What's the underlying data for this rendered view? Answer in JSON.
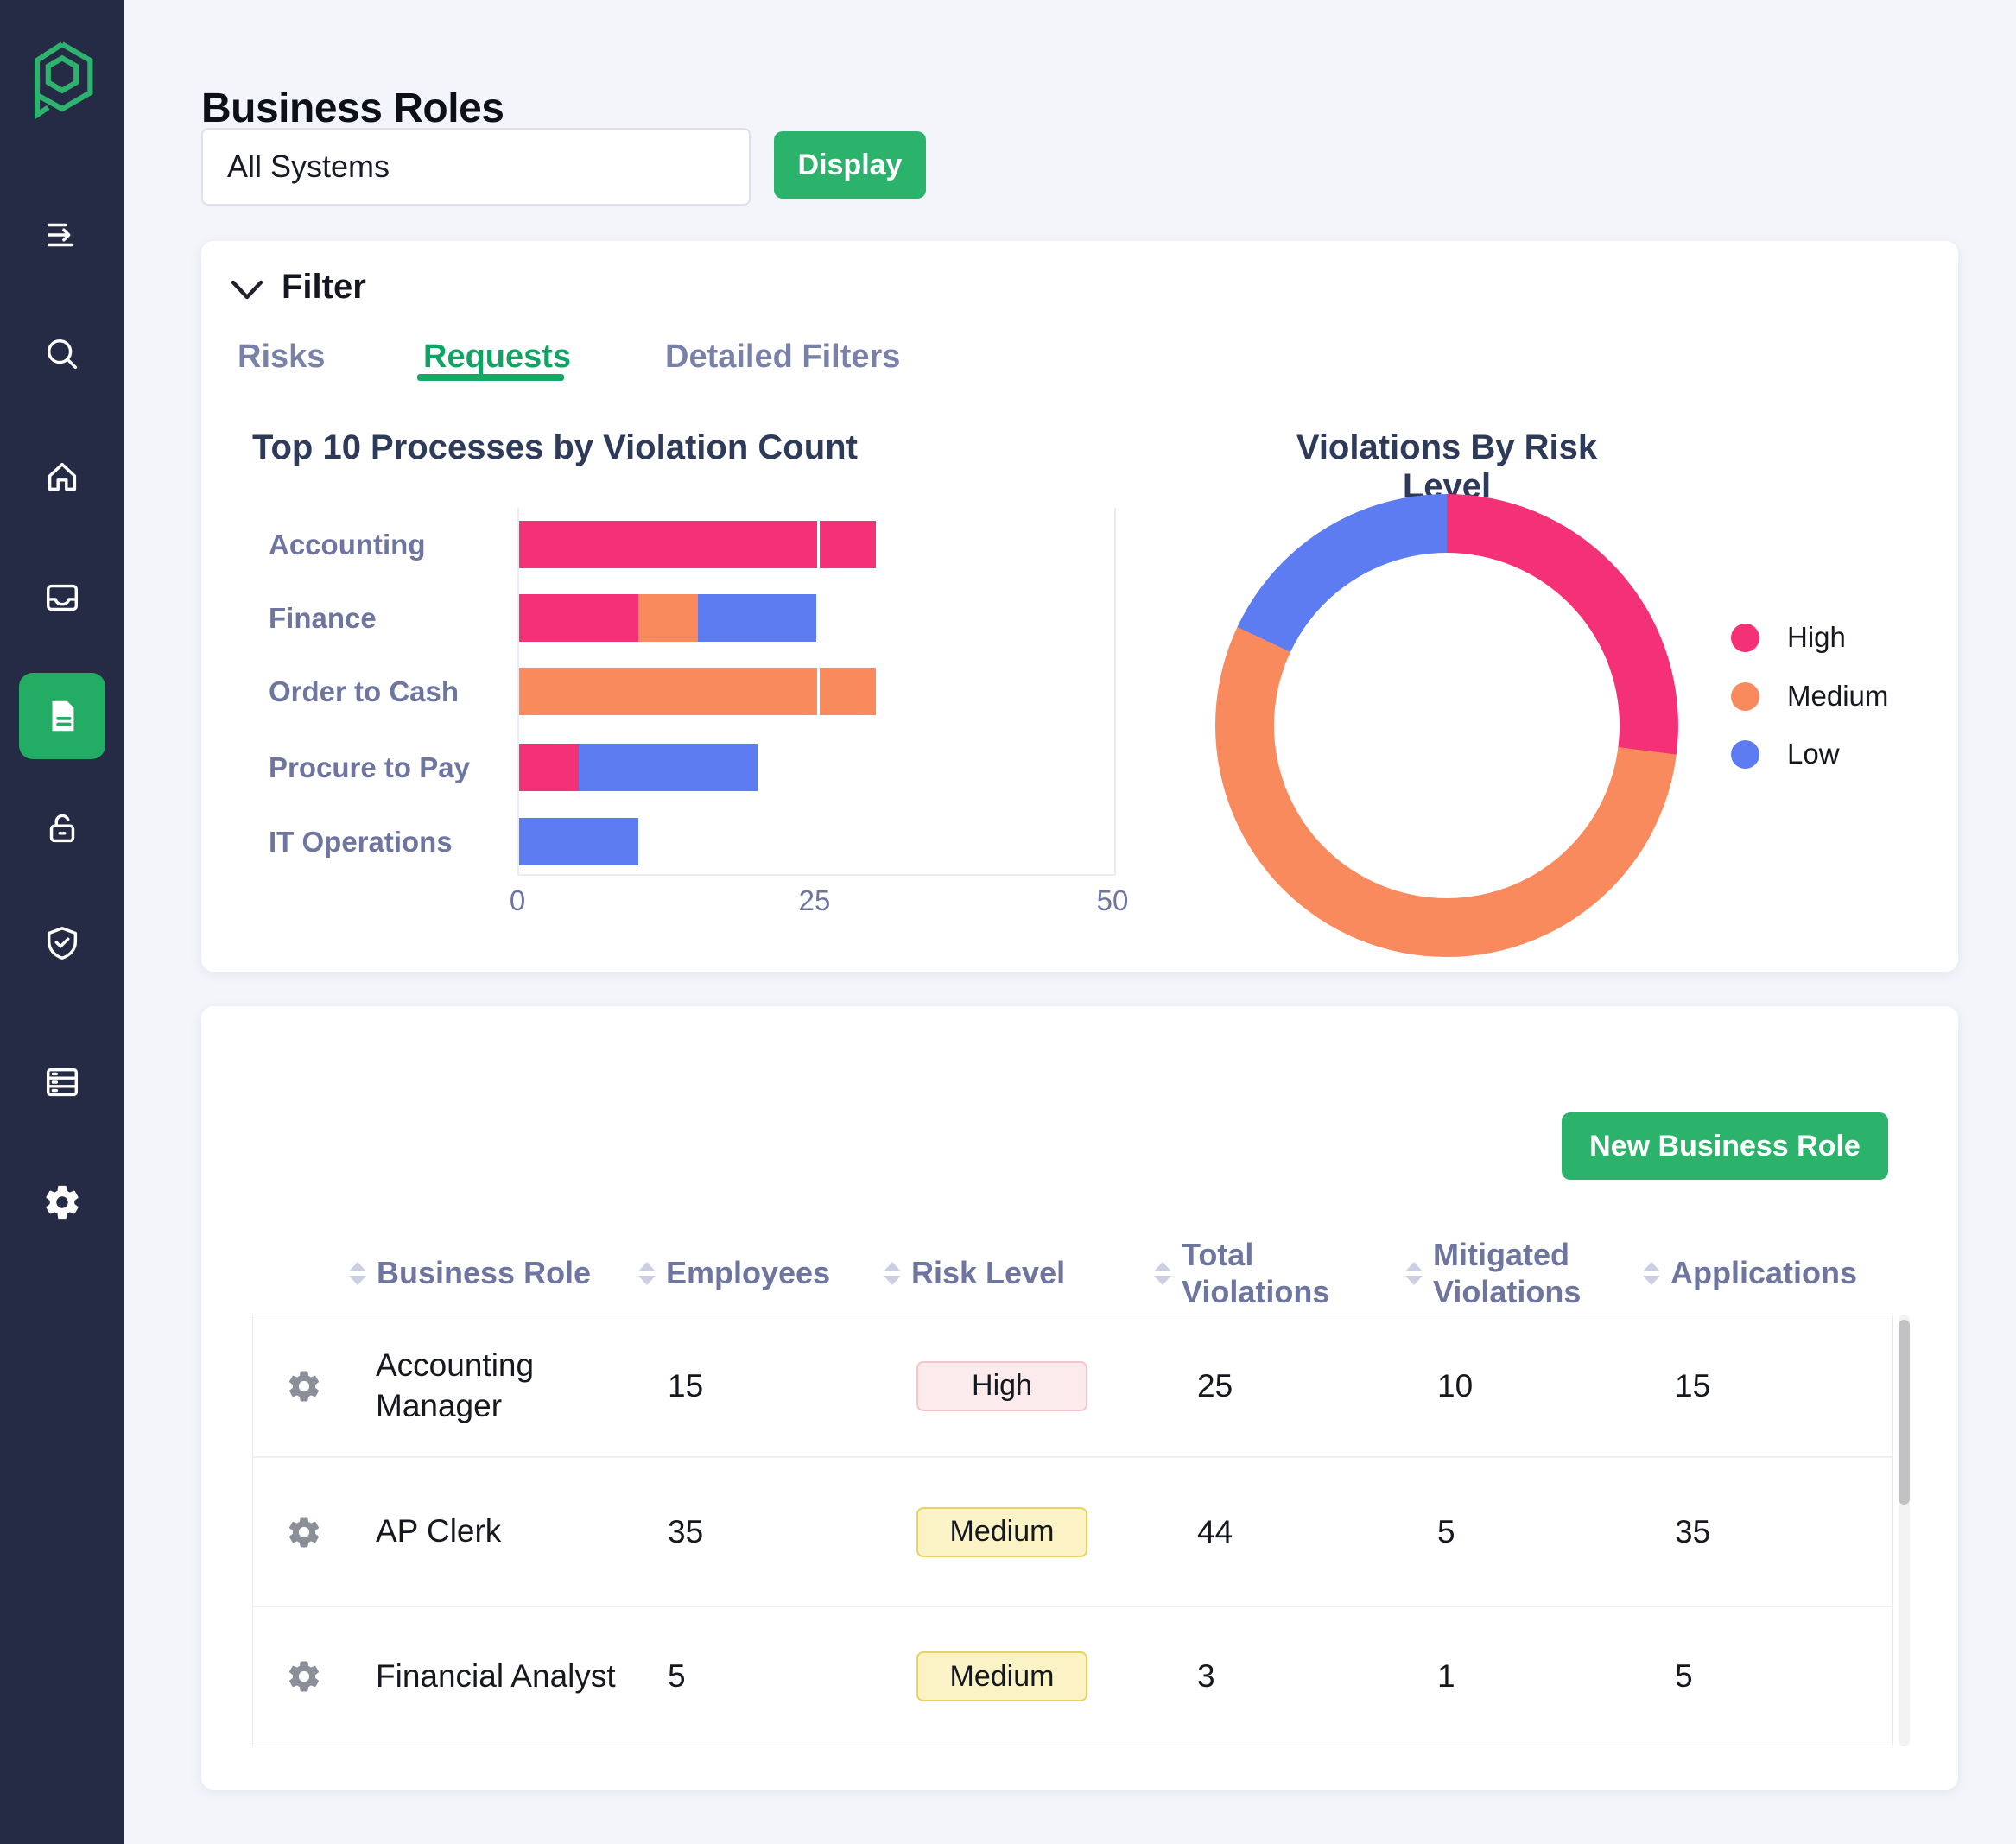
{
  "header": {
    "title": "Business Roles",
    "system_filter": {
      "value": "All Systems"
    },
    "display_button": "Display"
  },
  "sidebar": {
    "logo": "hexagon-p-logo",
    "items": [
      {
        "icon": "menu-expand-icon"
      },
      {
        "icon": "search-icon"
      },
      {
        "icon": "home-icon"
      },
      {
        "icon": "inbox-icon"
      },
      {
        "icon": "document-icon",
        "active": true
      },
      {
        "icon": "unlock-icon"
      },
      {
        "icon": "shield-check-icon"
      },
      {
        "icon": "server-icon"
      },
      {
        "icon": "settings-icon"
      }
    ]
  },
  "filter": {
    "heading": "Filter",
    "tabs": [
      {
        "label": "Risks",
        "active": false
      },
      {
        "label": "Requests",
        "active": true
      },
      {
        "label": "Detailed Filters",
        "active": false
      }
    ]
  },
  "chart_data": [
    {
      "type": "bar",
      "title": "Top 10 Processes by Violation Count",
      "orientation": "horizontal",
      "stacked": true,
      "categories": [
        "Accounting",
        "Finance",
        "Order to Cash",
        "Procure to Pay",
        "IT Operations"
      ],
      "series": [
        {
          "name": "High",
          "color": "#F43077",
          "values": [
            30,
            10,
            0,
            5,
            0
          ]
        },
        {
          "name": "Medium",
          "color": "#F98A5E",
          "values": [
            0,
            5,
            30,
            0,
            0
          ]
        },
        {
          "name": "Low",
          "color": "#5E7CF2",
          "values": [
            0,
            10,
            0,
            15,
            10
          ]
        }
      ],
      "xlim": [
        0,
        50
      ],
      "xticks": [
        0,
        25,
        50
      ],
      "grid": true,
      "legend_position": "none"
    },
    {
      "type": "pie",
      "donut": true,
      "title": "Violations By Risk Level",
      "labels": [
        "High",
        "Medium",
        "Low"
      ],
      "values": [
        27,
        55,
        18
      ],
      "value_unit": "percent-estimated",
      "colors": [
        "#F43077",
        "#F98A5E",
        "#5E7CF2"
      ],
      "legend_position": "right"
    }
  ],
  "table": {
    "new_button": "New Business Role",
    "columns": [
      {
        "label": "Business Role",
        "sortable": true
      },
      {
        "label": "Employees",
        "sortable": true
      },
      {
        "label": "Risk Level",
        "sortable": true
      },
      {
        "label": "Total Violations",
        "sortable": true
      },
      {
        "label": "Mitigated Violations",
        "sortable": true
      },
      {
        "label": "Applications",
        "sortable": true
      }
    ],
    "rows": [
      {
        "role": "Accounting Manager",
        "employees": 15,
        "risk_level": "High",
        "total_violations": 25,
        "mitigated_violations": 10,
        "applications": 15
      },
      {
        "role": "AP Clerk",
        "employees": 35,
        "risk_level": "Medium",
        "total_violations": 44,
        "mitigated_violations": 5,
        "applications": 35
      },
      {
        "role": "Financial Analyst",
        "employees": 5,
        "risk_level": "Medium",
        "total_violations": 3,
        "mitigated_violations": 1,
        "applications": 5
      }
    ]
  },
  "colors": {
    "sidebar_bg": "#262B45",
    "brand_green": "#2BB36B",
    "active_tab_green": "#12A263",
    "high_pink": "#F43077",
    "medium_orange": "#F98A5E",
    "low_blue": "#5E7CF2",
    "badge_high_bg": "#FCEBEC",
    "badge_medium_bg": "#FBF3C6",
    "muted_label": "#6E76A0",
    "page_bg": "#F3F5FB"
  }
}
